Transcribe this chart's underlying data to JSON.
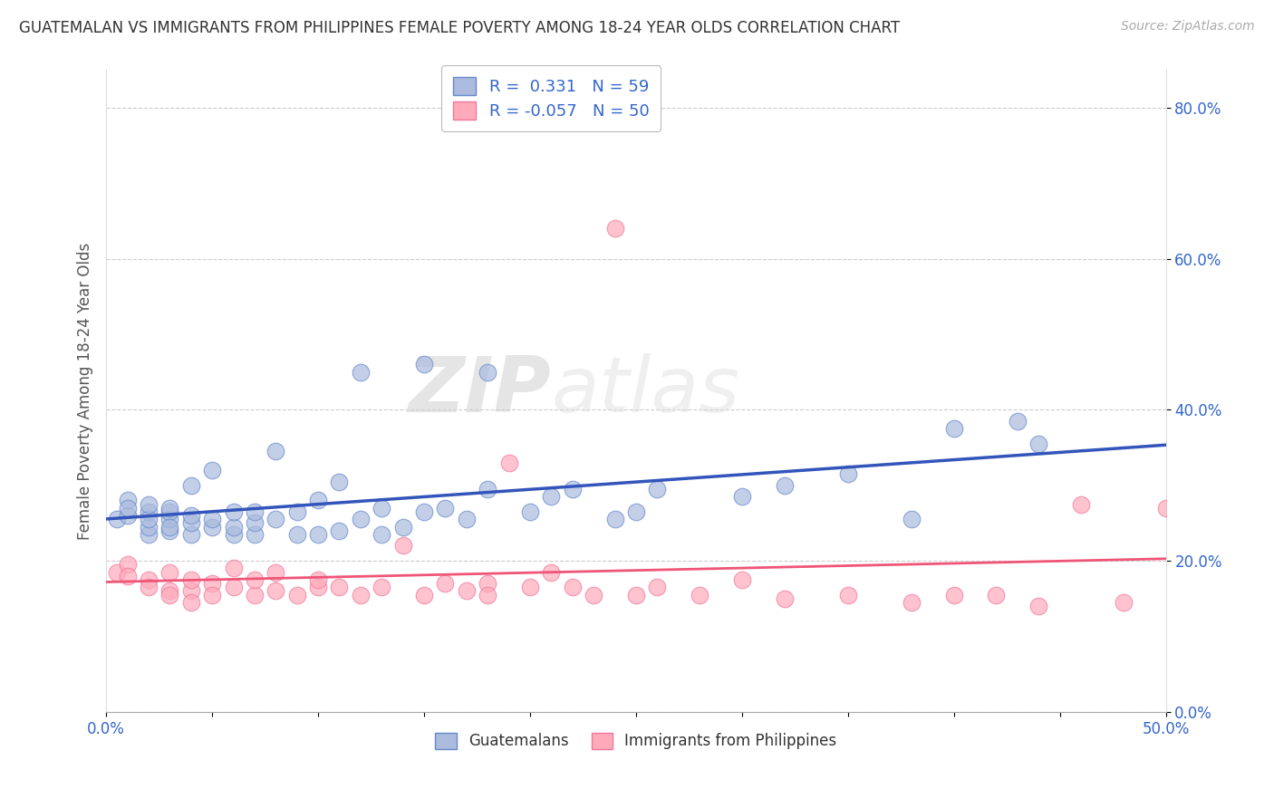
{
  "title": "GUATEMALAN VS IMMIGRANTS FROM PHILIPPINES FEMALE POVERTY AMONG 18-24 YEAR OLDS CORRELATION CHART",
  "source": "Source: ZipAtlas.com",
  "ylabel": "Female Poverty Among 18-24 Year Olds",
  "xlim": [
    0.0,
    0.5
  ],
  "ylim": [
    0.0,
    0.85
  ],
  "ytick_vals": [
    0.0,
    0.2,
    0.4,
    0.6,
    0.8
  ],
  "ytick_labels": [
    "0.0%",
    "20.0%",
    "40.0%",
    "60.0%",
    "80.0%"
  ],
  "xtick_vals": [
    0.0,
    0.05,
    0.1,
    0.15,
    0.2,
    0.25,
    0.3,
    0.35,
    0.4,
    0.45,
    0.5
  ],
  "xtick_labels": [
    "0.0%",
    "",
    "",
    "",
    "",
    "",
    "",
    "",
    "",
    "",
    "50.0%"
  ],
  "blue_R": 0.331,
  "blue_N": 59,
  "pink_R": -0.057,
  "pink_N": 50,
  "legend_label_blue": "Guatemalans",
  "legend_label_pink": "Immigrants from Philippines",
  "background_color": "#ffffff",
  "grid_color": "#cccccc",
  "blue_color": "#aabbdd",
  "pink_color": "#ffaabb",
  "blue_edge_color": "#6688cc",
  "pink_edge_color": "#ee7799",
  "blue_line_color": "#3355bb",
  "pink_line_color": "#ee5577",
  "watermark_zip": "ZIP",
  "watermark_atlas": "atlas",
  "blue_scatter_x": [
    0.005,
    0.01,
    0.01,
    0.01,
    0.02,
    0.02,
    0.02,
    0.02,
    0.02,
    0.03,
    0.03,
    0.03,
    0.03,
    0.03,
    0.04,
    0.04,
    0.04,
    0.04,
    0.05,
    0.05,
    0.05,
    0.06,
    0.06,
    0.06,
    0.07,
    0.07,
    0.07,
    0.08,
    0.08,
    0.09,
    0.09,
    0.1,
    0.1,
    0.11,
    0.11,
    0.12,
    0.12,
    0.13,
    0.13,
    0.14,
    0.15,
    0.15,
    0.16,
    0.17,
    0.18,
    0.18,
    0.2,
    0.21,
    0.22,
    0.24,
    0.25,
    0.26,
    0.3,
    0.32,
    0.35,
    0.38,
    0.4,
    0.43,
    0.44
  ],
  "blue_scatter_y": [
    0.255,
    0.26,
    0.28,
    0.27,
    0.235,
    0.245,
    0.265,
    0.255,
    0.275,
    0.24,
    0.255,
    0.265,
    0.245,
    0.27,
    0.235,
    0.25,
    0.26,
    0.3,
    0.245,
    0.255,
    0.32,
    0.235,
    0.245,
    0.265,
    0.235,
    0.25,
    0.265,
    0.255,
    0.345,
    0.235,
    0.265,
    0.235,
    0.28,
    0.24,
    0.305,
    0.255,
    0.45,
    0.235,
    0.27,
    0.245,
    0.265,
    0.46,
    0.27,
    0.255,
    0.295,
    0.45,
    0.265,
    0.285,
    0.295,
    0.255,
    0.265,
    0.295,
    0.285,
    0.3,
    0.315,
    0.255,
    0.375,
    0.385,
    0.355
  ],
  "pink_scatter_x": [
    0.005,
    0.01,
    0.01,
    0.02,
    0.02,
    0.03,
    0.03,
    0.03,
    0.04,
    0.04,
    0.04,
    0.05,
    0.05,
    0.06,
    0.06,
    0.07,
    0.07,
    0.08,
    0.08,
    0.09,
    0.1,
    0.1,
    0.11,
    0.12,
    0.13,
    0.14,
    0.15,
    0.16,
    0.17,
    0.18,
    0.18,
    0.19,
    0.2,
    0.21,
    0.22,
    0.23,
    0.24,
    0.25,
    0.26,
    0.28,
    0.3,
    0.32,
    0.35,
    0.38,
    0.4,
    0.42,
    0.44,
    0.46,
    0.48,
    0.5
  ],
  "pink_scatter_y": [
    0.185,
    0.195,
    0.18,
    0.175,
    0.165,
    0.16,
    0.185,
    0.155,
    0.16,
    0.175,
    0.145,
    0.17,
    0.155,
    0.165,
    0.19,
    0.155,
    0.175,
    0.16,
    0.185,
    0.155,
    0.165,
    0.175,
    0.165,
    0.155,
    0.165,
    0.22,
    0.155,
    0.17,
    0.16,
    0.17,
    0.155,
    0.33,
    0.165,
    0.185,
    0.165,
    0.155,
    0.64,
    0.155,
    0.165,
    0.155,
    0.175,
    0.15,
    0.155,
    0.145,
    0.155,
    0.155,
    0.14,
    0.275,
    0.145,
    0.27
  ]
}
